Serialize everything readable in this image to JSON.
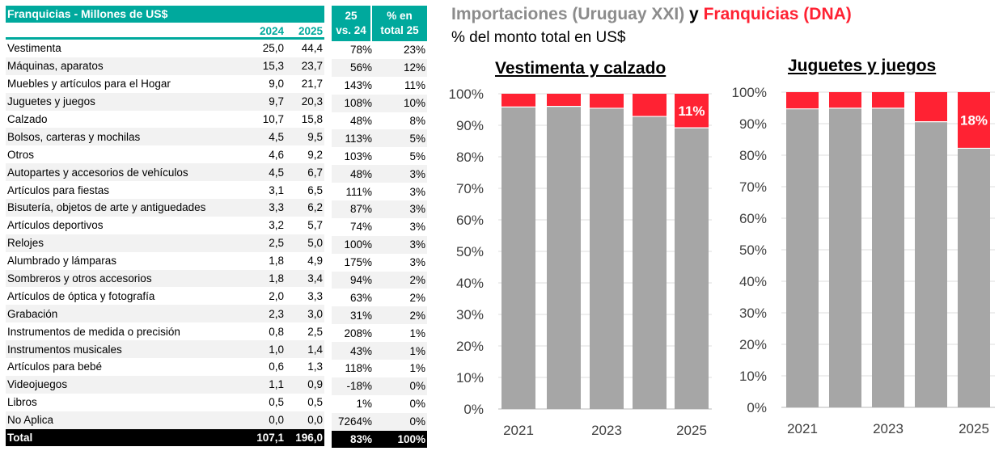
{
  "table": {
    "title": "Franquicias - Millones de US$",
    "col_2024": "2024",
    "col_2025": "2025",
    "col_var_line1": "25",
    "col_var_line2": "vs. 24",
    "col_share_line1": "% en",
    "col_share_line2": "total 25",
    "rows": [
      {
        "name": "Vestimenta",
        "v2024": "25,0",
        "v2025": "44,4",
        "var": "78%",
        "share": "23%"
      },
      {
        "name": "Máquinas, aparatos",
        "v2024": "15,3",
        "v2025": "23,7",
        "var": "56%",
        "share": "12%"
      },
      {
        "name": "Muebles y artículos para el Hogar",
        "v2024": "9,0",
        "v2025": "21,7",
        "var": "143%",
        "share": "11%"
      },
      {
        "name": "Juguetes y juegos",
        "v2024": "9,7",
        "v2025": "20,3",
        "var": "108%",
        "share": "10%"
      },
      {
        "name": "Calzado",
        "v2024": "10,7",
        "v2025": "15,8",
        "var": "48%",
        "share": "8%"
      },
      {
        "name": "Bolsos, carteras y mochilas",
        "v2024": "4,5",
        "v2025": "9,5",
        "var": "113%",
        "share": "5%"
      },
      {
        "name": "Otros",
        "v2024": "4,6",
        "v2025": "9,2",
        "var": "103%",
        "share": "5%"
      },
      {
        "name": "Autopartes y accesorios de vehículos",
        "v2024": "4,5",
        "v2025": "6,7",
        "var": "48%",
        "share": "3%"
      },
      {
        "name": "Artículos para fiestas",
        "v2024": "3,1",
        "v2025": "6,5",
        "var": "111%",
        "share": "3%"
      },
      {
        "name": "Bisutería, objetos de arte y antiguedades",
        "v2024": "3,3",
        "v2025": "6,2",
        "var": "87%",
        "share": "3%"
      },
      {
        "name": "Artículos deportivos",
        "v2024": "3,2",
        "v2025": "5,7",
        "var": "74%",
        "share": "3%"
      },
      {
        "name": "Relojes",
        "v2024": "2,5",
        "v2025": "5,0",
        "var": "100%",
        "share": "3%"
      },
      {
        "name": "Alumbrado y lámparas",
        "v2024": "1,8",
        "v2025": "4,9",
        "var": "175%",
        "share": "3%"
      },
      {
        "name": "Sombreros y otros accesorios",
        "v2024": "1,8",
        "v2025": "3,4",
        "var": "94%",
        "share": "2%"
      },
      {
        "name": "Artículos de óptica y fotografía",
        "v2024": "2,0",
        "v2025": "3,3",
        "var": "63%",
        "share": "2%"
      },
      {
        "name": "Grabación",
        "v2024": "2,3",
        "v2025": "3,0",
        "var": "31%",
        "share": "2%"
      },
      {
        "name": "Instrumentos de medida o precisión",
        "v2024": "0,8",
        "v2025": "2,5",
        "var": "208%",
        "share": "1%"
      },
      {
        "name": "Instrumentos musicales",
        "v2024": "1,0",
        "v2025": "1,4",
        "var": "43%",
        "share": "1%"
      },
      {
        "name": "Artículos para bebé",
        "v2024": "0,6",
        "v2025": "1,3",
        "var": "118%",
        "share": "1%"
      },
      {
        "name": "Videojuegos",
        "v2024": "1,1",
        "v2025": "0,9",
        "var": "-18%",
        "share": "0%"
      },
      {
        "name": "Libros",
        "v2024": "0,5",
        "v2025": "0,5",
        "var": "1%",
        "share": "0%"
      },
      {
        "name": "No Aplica",
        "v2024": "0,0",
        "v2025": "0,0",
        "var": "7264%",
        "share": "0%"
      }
    ],
    "total": {
      "name": "Total",
      "v2024": "107,1",
      "v2025": "196,0",
      "var": "83%",
      "share": "100%"
    }
  },
  "heading": {
    "part1": "Importaciones (Uruguay XXI)",
    "part2": " y ",
    "part3": "Franquicias (DNA)",
    "subtitle": "% del monto total en US$"
  },
  "colors": {
    "teal": "#00a99d",
    "imports_gray": "#a6a6a6",
    "franchise_red": "#ff2233"
  },
  "chart_data": [
    {
      "type": "bar",
      "stacked": true,
      "title": "Vestimenta y calzado",
      "categories": [
        "2021",
        "2022",
        "2023",
        "2024",
        "2025"
      ],
      "x_tick_labels": [
        "2021",
        "",
        "2023",
        "",
        "2025"
      ],
      "series": [
        {
          "name": "Importaciones (Uruguay XXI)",
          "color": "#a6a6a6",
          "values": [
            95.8,
            96.0,
            95.4,
            92.8,
            89.2
          ]
        },
        {
          "name": "Franquicias (DNA)",
          "color": "#ff2233",
          "values": [
            4.2,
            4.0,
            4.6,
            7.2,
            10.8
          ]
        }
      ],
      "data_labels": [
        {
          "category": "2025",
          "series": "Franquicias (DNA)",
          "text": "11%"
        }
      ],
      "y_ticks": [
        "0%",
        "10%",
        "20%",
        "30%",
        "40%",
        "50%",
        "60%",
        "70%",
        "80%",
        "90%",
        "100%"
      ],
      "ylim": [
        0,
        100
      ],
      "grid": true,
      "legend": "none"
    },
    {
      "type": "bar",
      "stacked": true,
      "title": "Juguetes y juegos",
      "categories": [
        "2021",
        "2022",
        "2023",
        "2024",
        "2025"
      ],
      "x_tick_labels": [
        "2021",
        "",
        "2023",
        "",
        "2025"
      ],
      "series": [
        {
          "name": "Importaciones (Uruguay XXI)",
          "color": "#a6a6a6",
          "values": [
            94.7,
            94.9,
            94.9,
            90.6,
            82.2
          ]
        },
        {
          "name": "Franquicias (DNA)",
          "color": "#ff2233",
          "values": [
            5.3,
            5.1,
            5.1,
            9.4,
            17.8
          ]
        }
      ],
      "data_labels": [
        {
          "category": "2025",
          "series": "Franquicias (DNA)",
          "text": "18%"
        }
      ],
      "y_ticks": [
        "0%",
        "10%",
        "20%",
        "30%",
        "40%",
        "50%",
        "60%",
        "70%",
        "80%",
        "90%",
        "100%"
      ],
      "ylim": [
        0,
        100
      ],
      "grid": true,
      "legend": "none"
    }
  ]
}
